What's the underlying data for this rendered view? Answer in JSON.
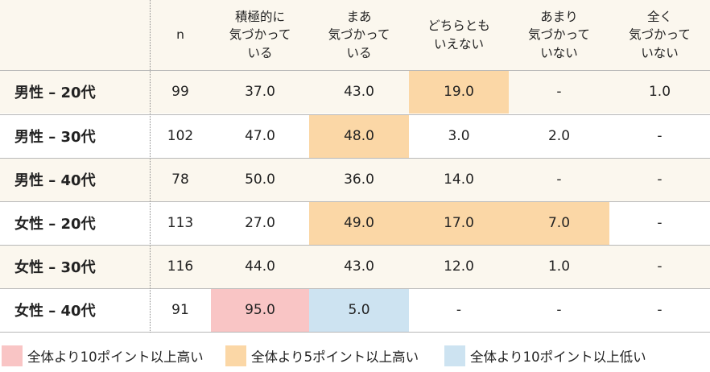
{
  "chart_data": {
    "type": "table",
    "columns": [
      "n",
      "積極的に\n気づかって\nいる",
      "まあ\n気づかって\nいる",
      "どちらとも\nいえない",
      "あまり\n気づかって\nいない",
      "全く\n気づかって\nいない"
    ],
    "rows": [
      {
        "label": "男性 – 20代",
        "values": [
          "99",
          "37.0",
          "43.0",
          "19.0",
          "-",
          "1.0"
        ],
        "highlights": [
          "",
          "",
          "",
          "orange",
          "",
          ""
        ]
      },
      {
        "label": "男性 – 30代",
        "values": [
          "102",
          "47.0",
          "48.0",
          "3.0",
          "2.0",
          "-"
        ],
        "highlights": [
          "",
          "",
          "orange",
          "",
          "",
          ""
        ]
      },
      {
        "label": "男性 – 40代",
        "values": [
          "78",
          "50.0",
          "36.0",
          "14.0",
          "-",
          "-"
        ],
        "highlights": [
          "",
          "",
          "",
          "",
          "",
          ""
        ]
      },
      {
        "label": "女性 – 20代",
        "values": [
          "113",
          "27.0",
          "49.0",
          "17.0",
          "7.0",
          "-"
        ],
        "highlights": [
          "",
          "",
          "orange",
          "orange",
          "orange",
          ""
        ]
      },
      {
        "label": "女性 – 30代",
        "values": [
          "116",
          "44.0",
          "43.0",
          "12.0",
          "1.0",
          "-"
        ],
        "highlights": [
          "",
          "",
          "",
          "",
          "",
          ""
        ]
      },
      {
        "label": "女性 – 40代",
        "values": [
          "91",
          "95.0",
          "5.0",
          "-",
          "-",
          "-"
        ],
        "highlights": [
          "",
          "pink",
          "blue",
          "",
          "",
          ""
        ]
      }
    ],
    "legend": [
      {
        "key": "pink",
        "label": "全体より10ポイント以上高い",
        "color": "#f9c5c5"
      },
      {
        "key": "orange",
        "label": "全体より5ポイント以上高い",
        "color": "#fbd7a6"
      },
      {
        "key": "blue",
        "label": "全体より10ポイント以上低い",
        "color": "#cde3f1"
      }
    ]
  }
}
